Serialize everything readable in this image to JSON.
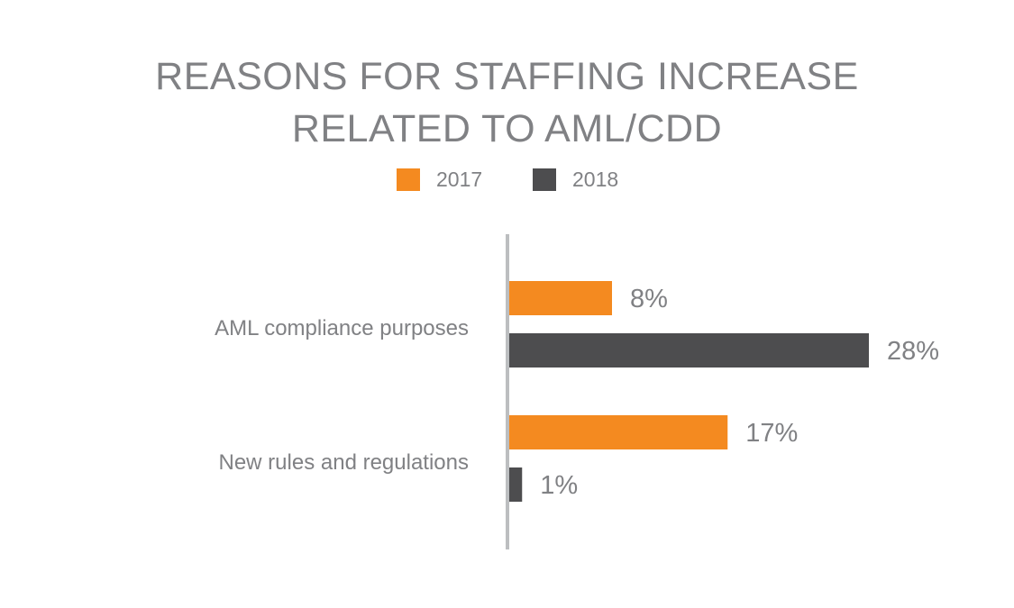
{
  "chart_data": {
    "type": "bar",
    "orientation": "horizontal",
    "title": "REASONS FOR STAFFING INCREASE RELATED TO AML/CDD",
    "title_lines": [
      "REASONS FOR STAFFING INCREASE",
      "RELATED TO AML/CDD"
    ],
    "categories": [
      "AML compliance purposes",
      "New rules and regulations"
    ],
    "series": [
      {
        "name": "2017",
        "color": "#F48A20",
        "values": [
          8,
          17
        ],
        "labels": [
          "8%",
          "17%"
        ]
      },
      {
        "name": "2018",
        "color": "#4D4D4F",
        "values": [
          28,
          1
        ],
        "labels": [
          "28%",
          "1%"
        ]
      }
    ],
    "xlabel": "",
    "ylabel": "",
    "xlim": [
      0,
      28
    ],
    "unit": "%",
    "grid": false,
    "legend_position": "top-center",
    "axis_color": "#BCBEC0",
    "text_color": "#808184"
  }
}
